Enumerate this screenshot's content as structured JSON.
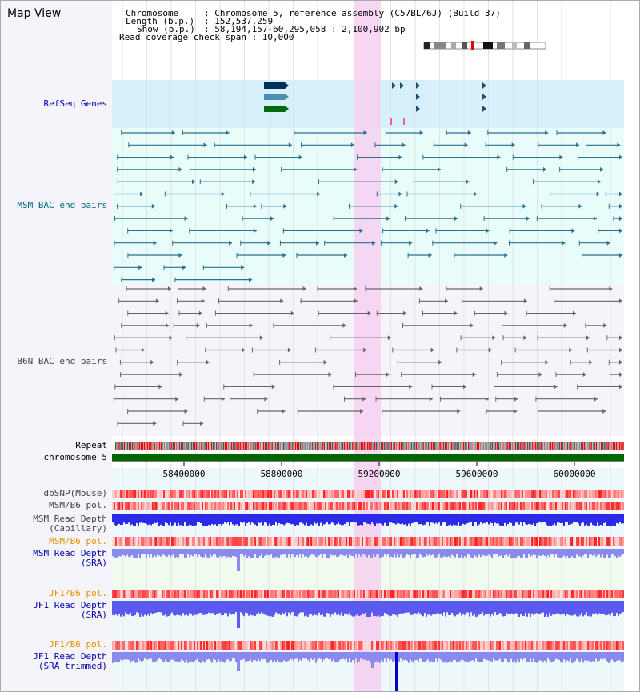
{
  "window": {
    "title": "Map View"
  },
  "header": {
    "chromosome_key": "Chromosome",
    "chromosome_val": ": Chromosome 5, reference assembly (C57BL/6J) (Build 37)",
    "length_key": "Length (b.p.)",
    "length_val": ": 152,537,259",
    "show_key": "Show (b.p.)",
    "show_val": ": 58,194,157-60,295,058 : 2,100,902 bp",
    "coverage_line": "Read coverage check span : 10,000"
  },
  "tracks": {
    "refseq": "RefSeq Genes",
    "msm_bac": "MSM BAC end pairs",
    "b6n_bac": "B6N BAC end pairs",
    "repeat": "Repeat",
    "chromosome": "chromosome 5",
    "dbsnp": "dbSNP(Mouse)",
    "msm_b6_pol_1": "MSM/B6 pol.",
    "msm_depth_cap_1": "MSM Read Depth",
    "msm_depth_cap_2": "(Capillary)",
    "msm_b6_pol_2": "MSM/B6 pol.",
    "msm_depth_sra_1": "MSM Read Depth",
    "msm_depth_sra_2": "(SRA)",
    "jf1_pol_1": "JF1/B6 pol.",
    "jf1_depth_sra_1": "JF1 Read Depth",
    "jf1_depth_sra_2": "(SRA)",
    "jf1_pol_2": "JF1/B6 pol.",
    "jf1_depth_trim_1": "JF1 Read Depth",
    "jf1_depth_trim_2": "(SRA trimmed)"
  },
  "axis": {
    "ticks": [
      "58400000",
      "58800000",
      "59200000",
      "59600000",
      "60000000"
    ]
  },
  "colors": {
    "refseq_label": "#0000aa",
    "msm_label": "#006688",
    "b6n_label": "#444444",
    "orange_label": "#e89000",
    "blue_label": "#0000aa",
    "highlight": "#f6d0f0",
    "chromosome_bar": "#006600",
    "depth_blue": "#3333ee",
    "depth_light": "#7777ee"
  }
}
